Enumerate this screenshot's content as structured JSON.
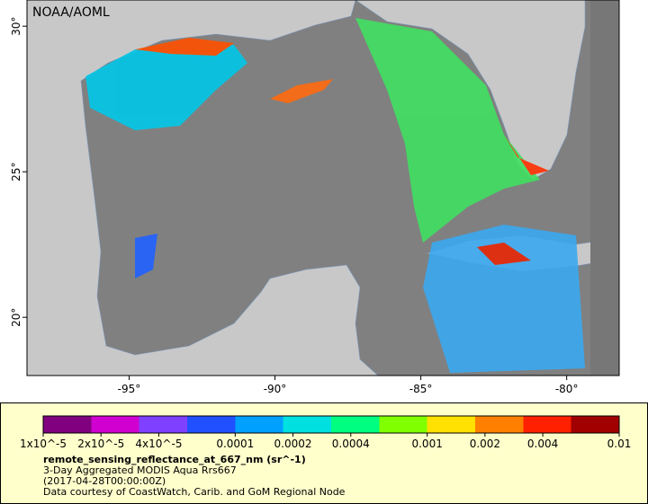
{
  "map": {
    "credit": "NOAA/AOML",
    "xlim": [
      -98.5,
      -78.2
    ],
    "ylim": [
      18,
      30.9
    ],
    "xticks": [
      {
        "value": -95,
        "label": "-95°"
      },
      {
        "value": -90,
        "label": "-90°"
      },
      {
        "value": -85,
        "label": "-85°"
      },
      {
        "value": -80,
        "label": "-80°"
      }
    ],
    "yticks": [
      {
        "value": 20,
        "label": "20°"
      },
      {
        "value": 25,
        "label": "25°"
      },
      {
        "value": 30,
        "label": "30°"
      }
    ],
    "ocean_color": "#808080",
    "land_color": "#c8c8c8"
  },
  "colorbar": {
    "scale": "log",
    "range": [
      1e-05,
      0.01
    ],
    "colors": [
      "#800080",
      "#d000d0",
      "#8040ff",
      "#2050ff",
      "#00a0ff",
      "#00e0e0",
      "#00ff80",
      "#80ff00",
      "#ffe000",
      "#ff8000",
      "#ff2000",
      "#a00000"
    ],
    "ticks": [
      {
        "value": 1e-05,
        "label": "1x10^-5"
      },
      {
        "value": 2e-05,
        "label": "2x10^-5"
      },
      {
        "value": 4e-05,
        "label": "4x10^-5"
      },
      0.0001,
      0.0002,
      0.0004,
      0.001,
      0.002,
      0.004,
      0.01
    ]
  },
  "caption": {
    "variable": "remote_sensing_reflectance_at_667_nm (sr^-1)",
    "description": "3-Day Aggregated MODIS Aqua Rrs667",
    "time": "(2017-04-28T00:00:00Z)",
    "credit": "Data courtesy of CoastWatch, Carib. and GoM Regional Node"
  }
}
